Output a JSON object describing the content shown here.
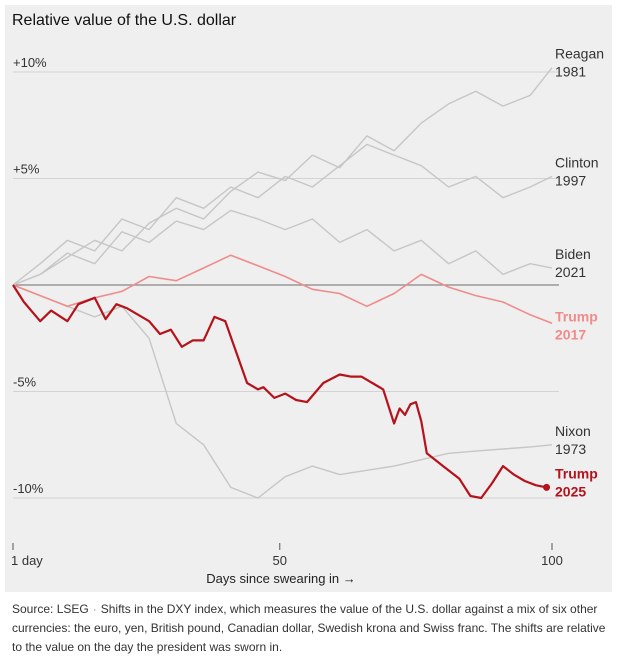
{
  "title": "Relative value of the U.S. dollar",
  "source": {
    "label": "Source: LSEG",
    "separator": "·",
    "note": "Shifts in the DXY index, which measures the value of the U.S. dollar against a mix of six other currencies: the euro, yen, British pound, Canadian dollar, Swedish krona and Swiss franc. The shifts are relative to the value on the day the president was sworn in."
  },
  "chart_data": {
    "type": "line",
    "title": "Relative value of the U.S. dollar",
    "xlabel": "Days since swearing in →",
    "ylabel": "",
    "xlim": [
      1,
      100
    ],
    "ylim": [
      -12,
      12
    ],
    "x_ticks": [
      {
        "value": 1,
        "label": "1 day"
      },
      {
        "value": 50,
        "label": "50"
      },
      {
        "value": 100,
        "label": "100"
      }
    ],
    "y_ticks": [
      {
        "value": 10,
        "label": "+10%"
      },
      {
        "value": 5,
        "label": "+5%"
      },
      {
        "value": 0,
        "label": ""
      },
      {
        "value": -5,
        "label": "-5%"
      },
      {
        "value": -10,
        "label": "-10%"
      }
    ],
    "colors": {
      "trump2025": "#b5121b",
      "trump2017": "#f08b8b",
      "other": "#c6c6c6",
      "baseline": "#888888"
    },
    "series": [
      {
        "name": "Reagan 1981",
        "label": [
          "Reagan",
          "1981"
        ],
        "style": "other",
        "x": [
          1,
          6,
          11,
          16,
          21,
          26,
          31,
          36,
          41,
          46,
          51,
          56,
          61,
          66,
          71,
          76,
          81,
          86,
          91,
          96,
          100
        ],
        "y": [
          0,
          0.5,
          1.3,
          2.1,
          1.6,
          2.9,
          3.6,
          3.1,
          4.4,
          5.3,
          4.9,
          6.1,
          5.5,
          7,
          6.3,
          7.6,
          8.5,
          9.1,
          8.4,
          8.9,
          10.2
        ]
      },
      {
        "name": "Clinton 1997",
        "label": [
          "Clinton",
          "1997"
        ],
        "style": "other",
        "x": [
          1,
          6,
          11,
          16,
          21,
          26,
          31,
          36,
          41,
          46,
          51,
          56,
          61,
          66,
          71,
          76,
          81,
          86,
          91,
          96,
          100
        ],
        "y": [
          0,
          1,
          2.1,
          1.6,
          3.1,
          2.6,
          4.1,
          3.6,
          4.6,
          4.1,
          5.1,
          4.6,
          5.6,
          6.6,
          6.1,
          5.6,
          4.6,
          5.1,
          4.1,
          4.6,
          5.1
        ]
      },
      {
        "name": "Biden 2021",
        "label": [
          "Biden",
          "2021"
        ],
        "style": "other",
        "x": [
          1,
          6,
          11,
          16,
          21,
          26,
          31,
          36,
          41,
          46,
          51,
          56,
          61,
          66,
          71,
          76,
          81,
          86,
          91,
          96,
          100
        ],
        "y": [
          0,
          0.5,
          1.5,
          1,
          2.5,
          2,
          3,
          2.6,
          3.5,
          3.1,
          2.6,
          3.1,
          2,
          2.6,
          1.6,
          2.1,
          1,
          1.6,
          0.5,
          1,
          0.8
        ]
      },
      {
        "name": "Trump 2017",
        "label": [
          "Trump",
          "2017"
        ],
        "style": "trump2017",
        "x": [
          1,
          6,
          11,
          16,
          21,
          26,
          31,
          36,
          41,
          46,
          51,
          56,
          61,
          66,
          71,
          76,
          81,
          86,
          91,
          96,
          100
        ],
        "y": [
          0,
          -0.5,
          -1,
          -0.6,
          -0.3,
          0.4,
          0.2,
          0.8,
          1.4,
          0.9,
          0.4,
          -0.2,
          -0.4,
          -1,
          -0.4,
          0.5,
          -0.1,
          -0.5,
          -0.8,
          -1.4,
          -1.8
        ]
      },
      {
        "name": "Nixon 1973",
        "label": [
          "Nixon",
          "1973"
        ],
        "style": "other",
        "x": [
          1,
          6,
          11,
          16,
          21,
          26,
          31,
          36,
          41,
          46,
          51,
          56,
          61,
          66,
          71,
          76,
          81,
          86,
          91,
          96,
          100
        ],
        "y": [
          0,
          -0.5,
          -1,
          -1.5,
          -1,
          -2.5,
          -6.5,
          -7.5,
          -9.5,
          -10,
          -9,
          -8.5,
          -8.9,
          -8.7,
          -8.5,
          -8.2,
          -7.9,
          -7.8,
          -7.7,
          -7.6,
          -7.5
        ]
      },
      {
        "name": "Trump 2025",
        "label": [
          "Trump",
          "2025"
        ],
        "style": "trump2025",
        "x": [
          1,
          3,
          6,
          8,
          11,
          13,
          16,
          18,
          20,
          22,
          26,
          28,
          30,
          32,
          34,
          36,
          38,
          40,
          44,
          46,
          47,
          49,
          51,
          53,
          55,
          58,
          61,
          63,
          65,
          67,
          69,
          71,
          72,
          73,
          74,
          75,
          76,
          77,
          80,
          83,
          85,
          87,
          89,
          91,
          93,
          95,
          97,
          99
        ],
        "y": [
          0,
          -0.8,
          -1.7,
          -1.2,
          -1.7,
          -0.9,
          -0.6,
          -1.6,
          -0.9,
          -1.1,
          -1.7,
          -2.3,
          -2.1,
          -2.9,
          -2.6,
          -2.6,
          -1.5,
          -1.7,
          -4.6,
          -4.9,
          -4.8,
          -5.3,
          -5.1,
          -5.4,
          -5.5,
          -4.6,
          -4.2,
          -4.3,
          -4.3,
          -4.6,
          -4.9,
          -6.5,
          -5.8,
          -6.1,
          -5.6,
          -5.5,
          -6.4,
          -7.9,
          -8.5,
          -9.1,
          -9.9,
          -10,
          -9.3,
          -8.5,
          -8.9,
          -9.2,
          -9.4,
          -9.5
        ]
      }
    ],
    "end_marker_series": "Trump 2025"
  }
}
